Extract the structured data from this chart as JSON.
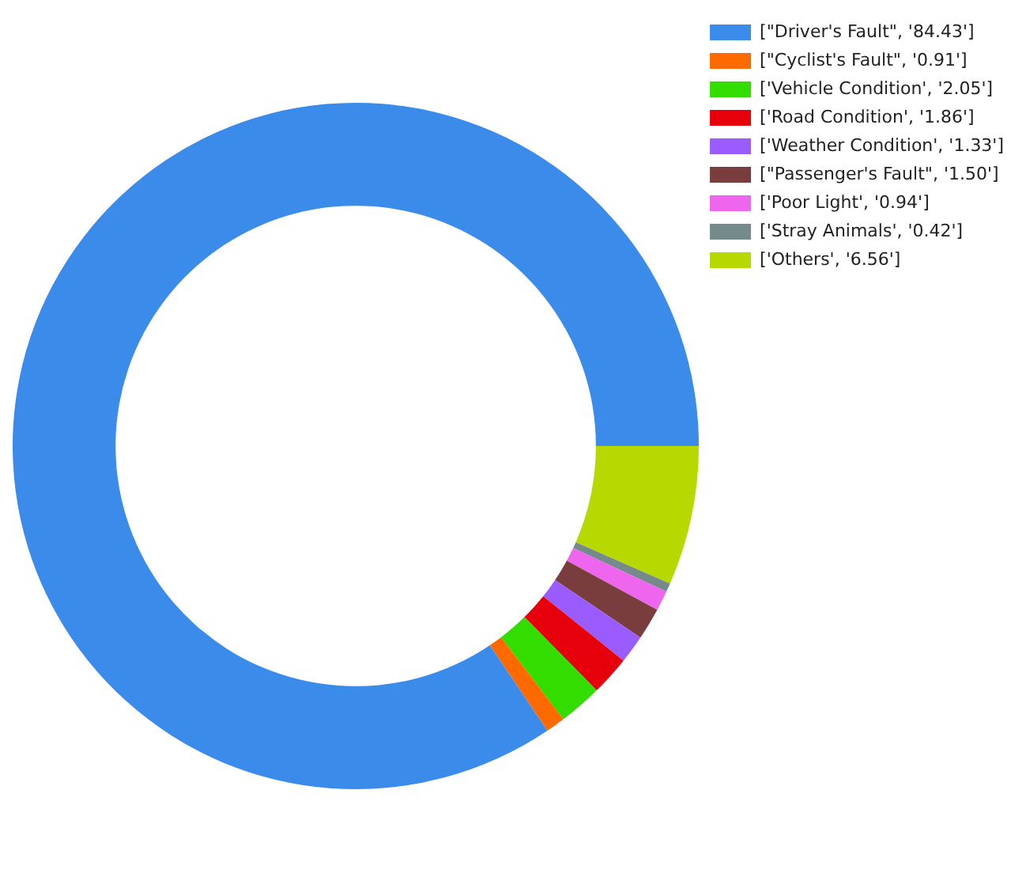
{
  "chart_data": {
    "type": "donut",
    "categories": [
      "[\"Driver's Fault\", '84.43']",
      "[\"Cyclist's Fault\", '0.91']",
      "['Vehicle Condition', '2.05']",
      "['Road Condition', '1.86']",
      "['Weather Condition', '1.33']",
      "[\"Passenger's Fault\", '1.50']",
      "['Poor Light', '0.94']",
      "['Stray Animals', '0.42']",
      "['Others', '6.56']"
    ],
    "values": [
      84.43,
      0.91,
      2.05,
      1.86,
      1.33,
      1.5,
      0.94,
      0.42,
      6.56
    ],
    "colors": [
      "#3b8beb",
      "#ff6a00",
      "#33dd00",
      "#e6000b",
      "#9a5cff",
      "#7a3d3d",
      "#ee66ee",
      "#758a8a",
      "#b8d900"
    ],
    "legend": "top right"
  }
}
